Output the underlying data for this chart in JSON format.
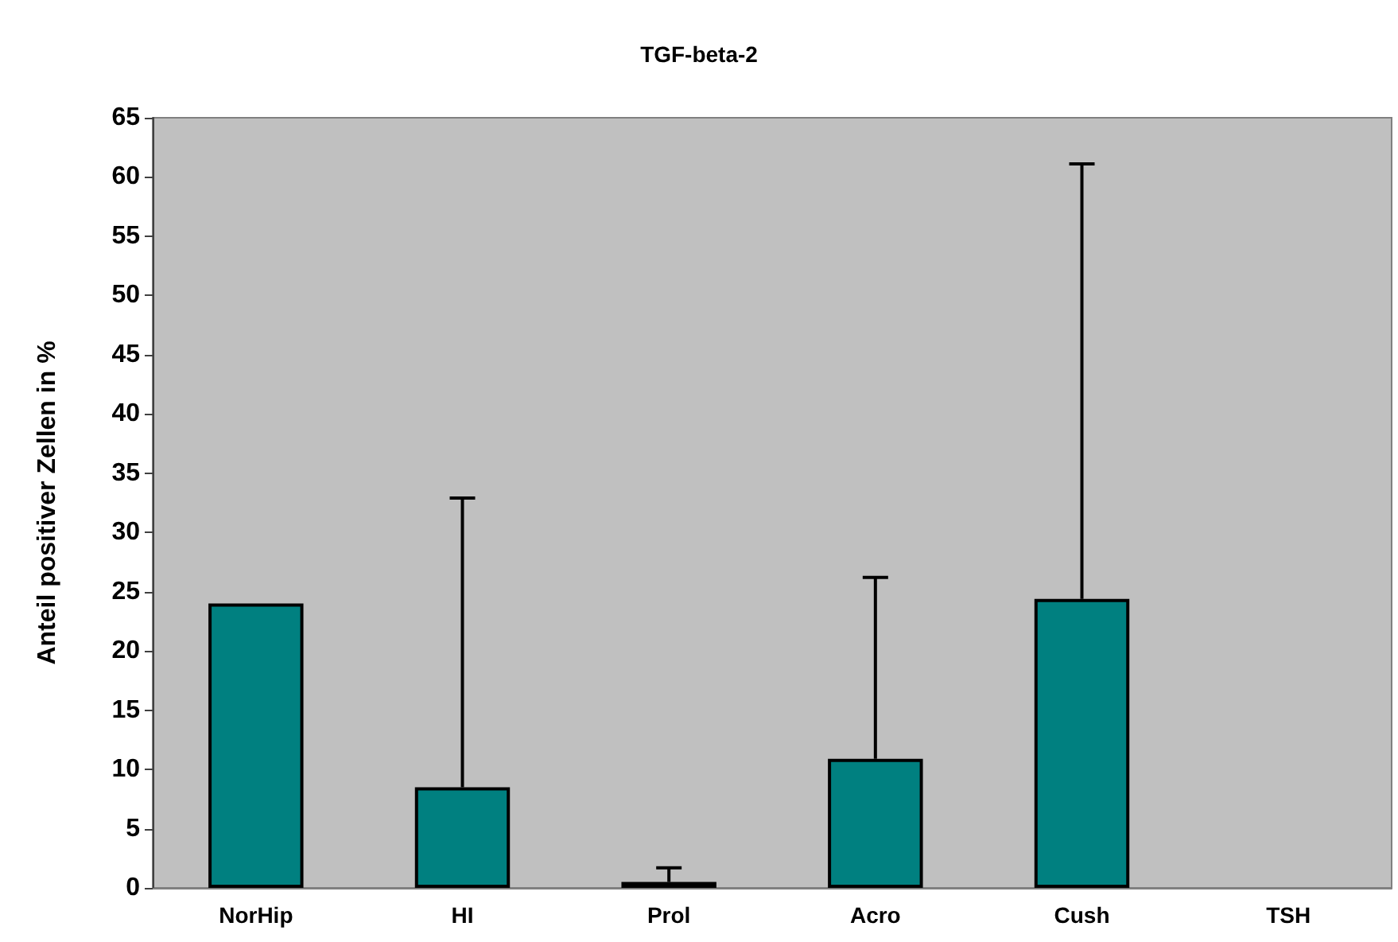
{
  "chart_data": {
    "type": "bar",
    "title": "TGF-beta-2",
    "ylabel": "Anteil positiver Zellen in %",
    "categories": [
      "NorHip",
      "HI",
      "Prol",
      "Acro",
      "Cush",
      "TSH"
    ],
    "values": [
      24,
      8.5,
      0.5,
      10.9,
      24.4,
      0
    ],
    "errors": [
      null,
      [
        8.5,
        32.9
      ],
      [
        0.5,
        1.7
      ],
      [
        10.9,
        26.2
      ],
      [
        24.4,
        61.1
      ],
      null
    ],
    "color": "#008080",
    "ylim": [
      0,
      65
    ],
    "yticks": [
      0,
      5,
      10,
      15,
      20,
      25,
      30,
      35,
      40,
      45,
      50,
      55,
      60,
      65
    ],
    "grid": false
  }
}
